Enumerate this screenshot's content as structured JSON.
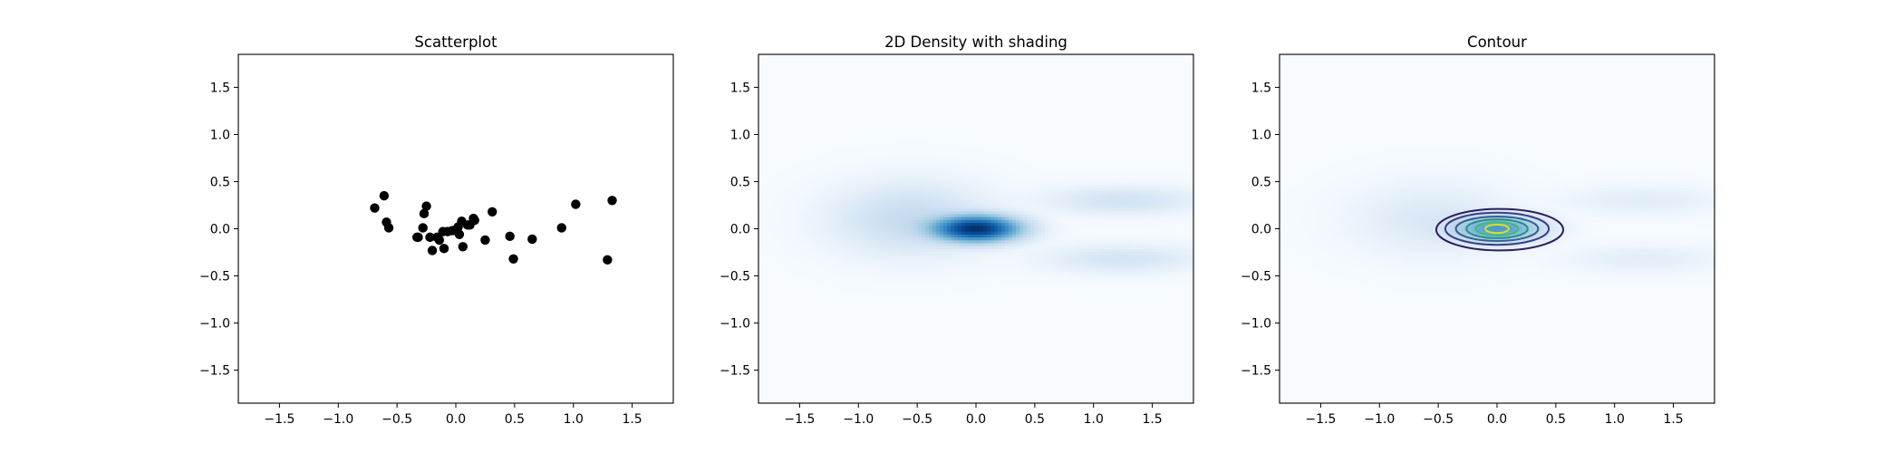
{
  "chart_data": [
    {
      "type": "scatter",
      "title": "Scatterplot",
      "xlabel": "",
      "ylabel": "",
      "xlim": [
        -1.85,
        1.85
      ],
      "ylim": [
        -1.85,
        1.85
      ],
      "xticks": [
        -1.5,
        -1.0,
        -0.5,
        0.0,
        0.5,
        1.0,
        1.5
      ],
      "yticks": [
        -1.5,
        -1.0,
        -0.5,
        0.0,
        0.5,
        1.0,
        1.5
      ],
      "xtick_labels": [
        "−1.5",
        "−1.0",
        "−0.5",
        "0.0",
        "0.5",
        "1.0",
        "1.5"
      ],
      "ytick_labels": [
        "−1.5",
        "−1.0",
        "−0.5",
        "0.0",
        "0.5",
        "1.0",
        "1.5"
      ],
      "marker_color": "#000000",
      "points": [
        [
          -0.69,
          0.22
        ],
        [
          -0.61,
          0.35
        ],
        [
          -0.59,
          0.07
        ],
        [
          -0.57,
          0.01
        ],
        [
          -0.33,
          -0.09
        ],
        [
          -0.32,
          -0.09
        ],
        [
          -0.28,
          0.01
        ],
        [
          -0.27,
          0.16
        ],
        [
          -0.25,
          0.24
        ],
        [
          -0.22,
          -0.09
        ],
        [
          -0.2,
          -0.23
        ],
        [
          -0.16,
          -0.09
        ],
        [
          -0.14,
          -0.12
        ],
        [
          -0.11,
          -0.03
        ],
        [
          -0.1,
          -0.21
        ],
        [
          -0.07,
          -0.03
        ],
        [
          -0.03,
          -0.02
        ],
        [
          0.0,
          -0.01
        ],
        [
          0.02,
          0.02
        ],
        [
          0.03,
          -0.06
        ],
        [
          0.05,
          0.08
        ],
        [
          0.06,
          -0.19
        ],
        [
          0.1,
          0.04
        ],
        [
          0.12,
          0.04
        ],
        [
          0.15,
          0.11
        ],
        [
          0.16,
          0.09
        ],
        [
          0.25,
          -0.12
        ],
        [
          0.31,
          0.18
        ],
        [
          0.46,
          -0.08
        ],
        [
          0.49,
          -0.32
        ],
        [
          0.65,
          -0.11
        ],
        [
          0.9,
          0.01
        ],
        [
          1.02,
          0.26
        ],
        [
          1.29,
          -0.33
        ],
        [
          1.33,
          0.3
        ]
      ]
    },
    {
      "type": "heatmap",
      "title": "2D Density with shading",
      "colormap": "Blues",
      "xlim": [
        -1.85,
        1.85
      ],
      "ylim": [
        -1.85,
        1.85
      ],
      "xticks": [
        -1.5,
        -1.0,
        -0.5,
        0.0,
        0.5,
        1.0,
        1.5
      ],
      "yticks": [
        -1.5,
        -1.0,
        -0.5,
        0.0,
        0.5,
        1.0,
        1.5
      ],
      "xtick_labels": [
        "−1.5",
        "−1.0",
        "−0.5",
        "0.0",
        "0.5",
        "1.0",
        "1.5"
      ],
      "ytick_labels": [
        "−1.5",
        "−1.0",
        "−0.5",
        "0.0",
        "0.5",
        "1.0",
        "1.5"
      ],
      "density_peak": [
        0.0,
        0.0
      ]
    },
    {
      "type": "contour",
      "title": "Contour",
      "colormap": "viridis",
      "background_colormap": "Blues",
      "xlim": [
        -1.85,
        1.85
      ],
      "ylim": [
        -1.85,
        1.85
      ],
      "xticks": [
        -1.5,
        -1.0,
        -0.5,
        0.0,
        0.5,
        1.0,
        1.5
      ],
      "yticks": [
        -1.5,
        -1.0,
        -0.5,
        0.0,
        0.5,
        1.0,
        1.5
      ],
      "xtick_labels": [
        "−1.5",
        "−1.0",
        "−0.5",
        "0.0",
        "0.5",
        "1.0",
        "1.5"
      ],
      "ytick_labels": [
        "−1.5",
        "−1.0",
        "−0.5",
        "0.0",
        "0.5",
        "1.0",
        "1.5"
      ],
      "contour_levels": 6,
      "contour_colors": [
        "#2b1e5c",
        "#3b3f87",
        "#33638d",
        "#2a8d8d",
        "#3fb978",
        "#d8e219"
      ],
      "density_peak": [
        0.0,
        0.0
      ]
    }
  ]
}
